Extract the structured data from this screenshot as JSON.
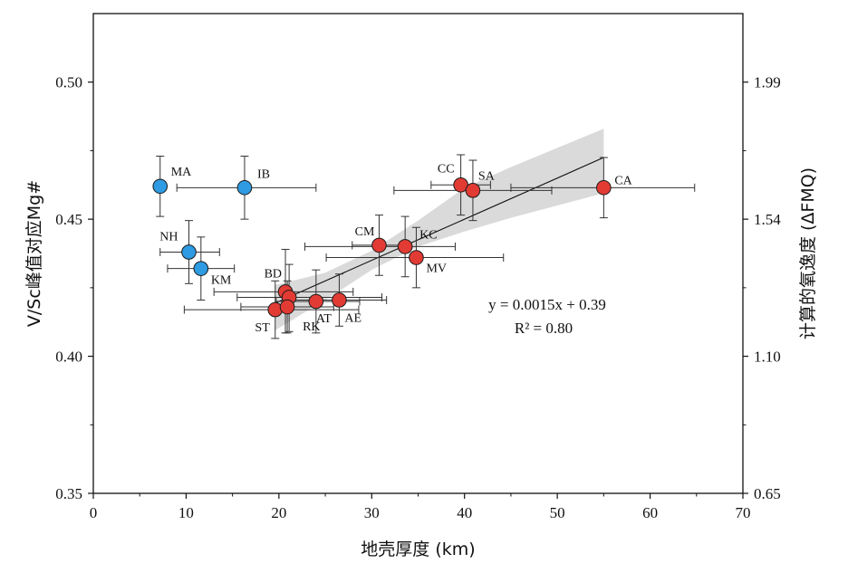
{
  "chart_data": {
    "type": "scatter",
    "xlabel": "地壳厚度 (km)",
    "ylabel": "V/Sc峰值对应Mg#",
    "y2label": "计算的氧逸度 (ΔFMQ)",
    "xlim": [
      0,
      70
    ],
    "ylim": [
      0.35,
      0.525
    ],
    "x_ticks": [
      "0",
      "10",
      "20",
      "30",
      "40",
      "50",
      "60",
      "70"
    ],
    "y_ticks": [
      "0.35",
      "0.40",
      "0.45",
      "0.50"
    ],
    "y2_ticks": [
      "0.65",
      "1.10",
      "1.54",
      "1.99"
    ],
    "grid": false,
    "colors": {
      "blue_group": "#2e9be3",
      "red_group": "#e23b34",
      "band": "#d3d3d3"
    },
    "series": [
      {
        "color": "blue",
        "points": [
          {
            "label": "MA",
            "x": 7.2,
            "y": 0.462,
            "xerr": [
              0,
              0
            ],
            "yerr": [
              0.011,
              0.011
            ]
          },
          {
            "label": "IB",
            "x": 16.3,
            "y": 0.4615,
            "xerr": [
              7.3,
              7.7
            ],
            "yerr": [
              0.0115,
              0.0115
            ]
          },
          {
            "label": "NH",
            "x": 10.3,
            "y": 0.438,
            "xerr": [
              3.1,
              3.3
            ],
            "yerr": [
              0.0115,
              0.0115
            ]
          },
          {
            "label": "KM",
            "x": 11.6,
            "y": 0.432,
            "xerr": [
              3.6,
              3.6
            ],
            "yerr": [
              0.0115,
              0.0115
            ]
          }
        ]
      },
      {
        "color": "red",
        "points": [
          {
            "label": "CC",
            "x": 39.6,
            "y": 0.4625,
            "xerr": [
              3.2,
              3.2
            ],
            "yerr": [
              0.011,
              0.011
            ]
          },
          {
            "label": "SA",
            "x": 40.9,
            "y": 0.4605,
            "xerr": [
              8.5,
              8.5
            ],
            "yerr": [
              0.011,
              0.011
            ]
          },
          {
            "label": "CA",
            "x": 55.0,
            "y": 0.4615,
            "xerr": [
              10.0,
              9.8
            ],
            "yerr": [
              0.011,
              0.011
            ]
          },
          {
            "label": "CM",
            "x": 30.8,
            "y": 0.4405,
            "xerr": [
              2.9,
              2.9
            ],
            "yerr": [
              0.011,
              0.011
            ]
          },
          {
            "label": "KC",
            "x": 33.6,
            "y": 0.44,
            "xerr": [
              10.8,
              5.4
            ],
            "yerr": [
              0.011,
              0.011
            ]
          },
          {
            "label": "MV",
            "x": 34.8,
            "y": 0.436,
            "xerr": [
              9.7,
              9.4
            ],
            "yerr": [
              0.011,
              0.011
            ]
          },
          {
            "label": "BD",
            "x": 20.7,
            "y": 0.4235,
            "xerr": [
              7.7,
              7.3
            ],
            "yerr": [
              0.015,
              0.0155
            ]
          },
          {
            "label": "",
            "x": 21.1,
            "y": 0.4215,
            "xerr": [
              5.6,
              10.0
            ],
            "yerr": [
              0.0125,
              0.012
            ]
          },
          {
            "label": "ST",
            "x": 19.6,
            "y": 0.417,
            "xerr": [
              9.8,
              9.0
            ],
            "yerr": [
              0.0105,
              0.0105
            ]
          },
          {
            "label": "RK",
            "x": 20.9,
            "y": 0.418,
            "xerr": [
              5.0,
              5.0
            ],
            "yerr": [
              0.0095,
              0.0095
            ]
          },
          {
            "label": "AT",
            "x": 24.0,
            "y": 0.42,
            "xerr": [
              4.3,
              4.7
            ],
            "yerr": [
              0.0115,
              0.0115
            ]
          },
          {
            "label": "AE",
            "x": 26.5,
            "y": 0.4205,
            "xerr": [
              5.1,
              5.1
            ],
            "yerr": [
              0.0095,
              0.0095
            ]
          }
        ]
      }
    ],
    "fit": {
      "x_range": [
        19.6,
        55.0
      ],
      "slope": 0.0015,
      "intercept": 0.39,
      "ci_band": [
        [
          19.6,
          0.4095,
          0.426
        ],
        [
          25.0,
          0.4205,
          0.4305
        ],
        [
          30.0,
          0.4315,
          0.4385
        ],
        [
          35.0,
          0.44,
          0.4495
        ],
        [
          40.0,
          0.4455,
          0.4615
        ],
        [
          45.0,
          0.4505,
          0.469
        ],
        [
          50.0,
          0.455,
          0.476
        ],
        [
          55.0,
          0.4595,
          0.483
        ]
      ],
      "equation_text": "y = 0.0015x + 0.39",
      "r2_text": "R² = 0.80"
    }
  }
}
